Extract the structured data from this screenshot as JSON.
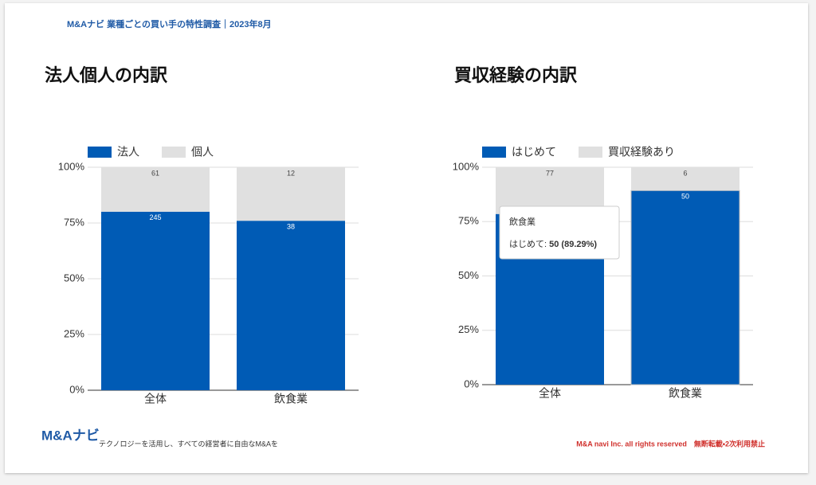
{
  "header": "M&Aナビ 業種ごとの買い手の特性調査｜2023年8月",
  "chart_data": [
    {
      "type": "bar",
      "stacking": "percent",
      "title": "法人個人の内訳",
      "categories": [
        "全体",
        "飲食業"
      ],
      "series": [
        {
          "name": "法人",
          "color": "#005bb5",
          "values": [
            245,
            38
          ]
        },
        {
          "name": "個人",
          "color": "#e0e0e0",
          "values": [
            61,
            12
          ]
        }
      ],
      "ylim": [
        0,
        100
      ],
      "yticks": [
        {
          "value": 0,
          "label": "0%"
        },
        {
          "value": 25,
          "label": "25%"
        },
        {
          "value": 50,
          "label": "50%"
        },
        {
          "value": 75,
          "label": "75%"
        },
        {
          "value": 100,
          "label": "100%"
        }
      ],
      "grid": true,
      "legend": "top"
    },
    {
      "type": "bar",
      "stacking": "percent",
      "title": "買収経験の内訳",
      "categories": [
        "全体",
        "飲食業"
      ],
      "series": [
        {
          "name": "はじめて",
          "color": "#005bb5",
          "values": [
            281,
            50
          ]
        },
        {
          "name": "買収経験あり",
          "color": "#e0e0e0",
          "values": [
            77,
            6
          ]
        }
      ],
      "ylim": [
        0,
        100
      ],
      "yticks": [
        {
          "value": 0,
          "label": "0%"
        },
        {
          "value": 25,
          "label": "25%"
        },
        {
          "value": 50,
          "label": "50%"
        },
        {
          "value": 75,
          "label": "75%"
        },
        {
          "value": 100,
          "label": "100%"
        }
      ],
      "grid": true,
      "legend": "top",
      "tooltip": {
        "title": "飲食業",
        "label": "はじめて: ",
        "value": "50 (89.29%)"
      }
    }
  ],
  "footer": {
    "logo": "M&Aナビ",
    "tagline": "テクノロジーを活用し、すべての経営者に自由なM&Aを",
    "copyright": "M&A navi Inc. all rights reserved　無断転載・2次利用禁止"
  }
}
